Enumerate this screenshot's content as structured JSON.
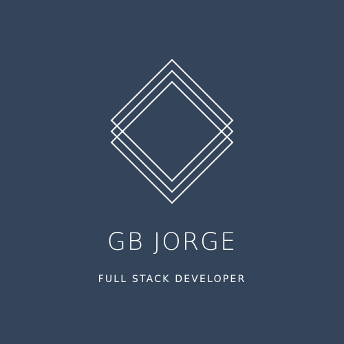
{
  "brand": {
    "name": "GB JORGE",
    "tagline": "FULL STACK DEVELOPER"
  },
  "logo": {
    "icon": "stacked-diamond-outlines-icon",
    "layers": 3
  },
  "colors": {
    "background": "#34445a",
    "foreground": "#ffffff"
  }
}
